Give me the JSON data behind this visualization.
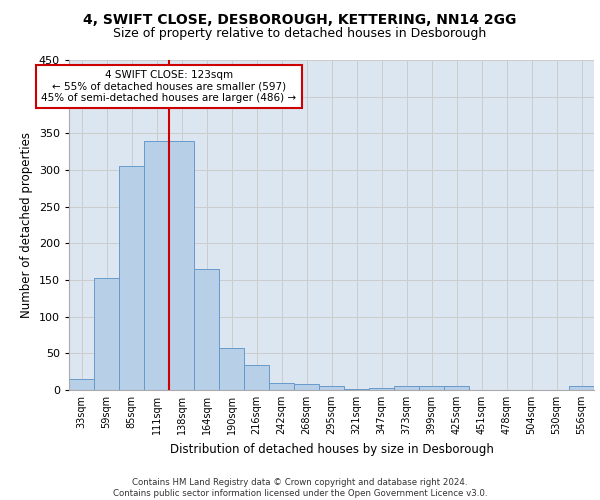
{
  "title1": "4, SWIFT CLOSE, DESBOROUGH, KETTERING, NN14 2GG",
  "title2": "Size of property relative to detached houses in Desborough",
  "xlabel": "Distribution of detached houses by size in Desborough",
  "ylabel": "Number of detached properties",
  "footer": "Contains HM Land Registry data © Crown copyright and database right 2024.\nContains public sector information licensed under the Open Government Licence v3.0.",
  "categories": [
    "33sqm",
    "59sqm",
    "85sqm",
    "111sqm",
    "138sqm",
    "164sqm",
    "190sqm",
    "216sqm",
    "242sqm",
    "268sqm",
    "295sqm",
    "321sqm",
    "347sqm",
    "373sqm",
    "399sqm",
    "425sqm",
    "451sqm",
    "478sqm",
    "504sqm",
    "530sqm",
    "556sqm"
  ],
  "values": [
    15,
    153,
    305,
    340,
    340,
    165,
    57,
    34,
    10,
    8,
    6,
    2,
    3,
    5,
    5,
    5,
    0,
    0,
    0,
    0,
    5
  ],
  "bar_color": "#b8cfe8",
  "bar_edge_color": "#6699cc",
  "vline_x": 3.5,
  "annotation_text": "4 SWIFT CLOSE: 123sqm\n← 55% of detached houses are smaller (597)\n45% of semi-detached houses are larger (486) →",
  "annotation_box_color": "#ffffff",
  "annotation_box_edge": "#cc0000",
  "vline_color": "#cc0000",
  "ylim": [
    0,
    450
  ],
  "yticks": [
    0,
    50,
    100,
    150,
    200,
    250,
    300,
    350,
    400,
    450
  ],
  "grid_color": "#cccccc",
  "bg_color": "#dce6f0",
  "title1_fontsize": 10,
  "title2_fontsize": 9,
  "xlabel_fontsize": 8.5,
  "ylabel_fontsize": 8.5,
  "footer_fontsize": 6.2
}
